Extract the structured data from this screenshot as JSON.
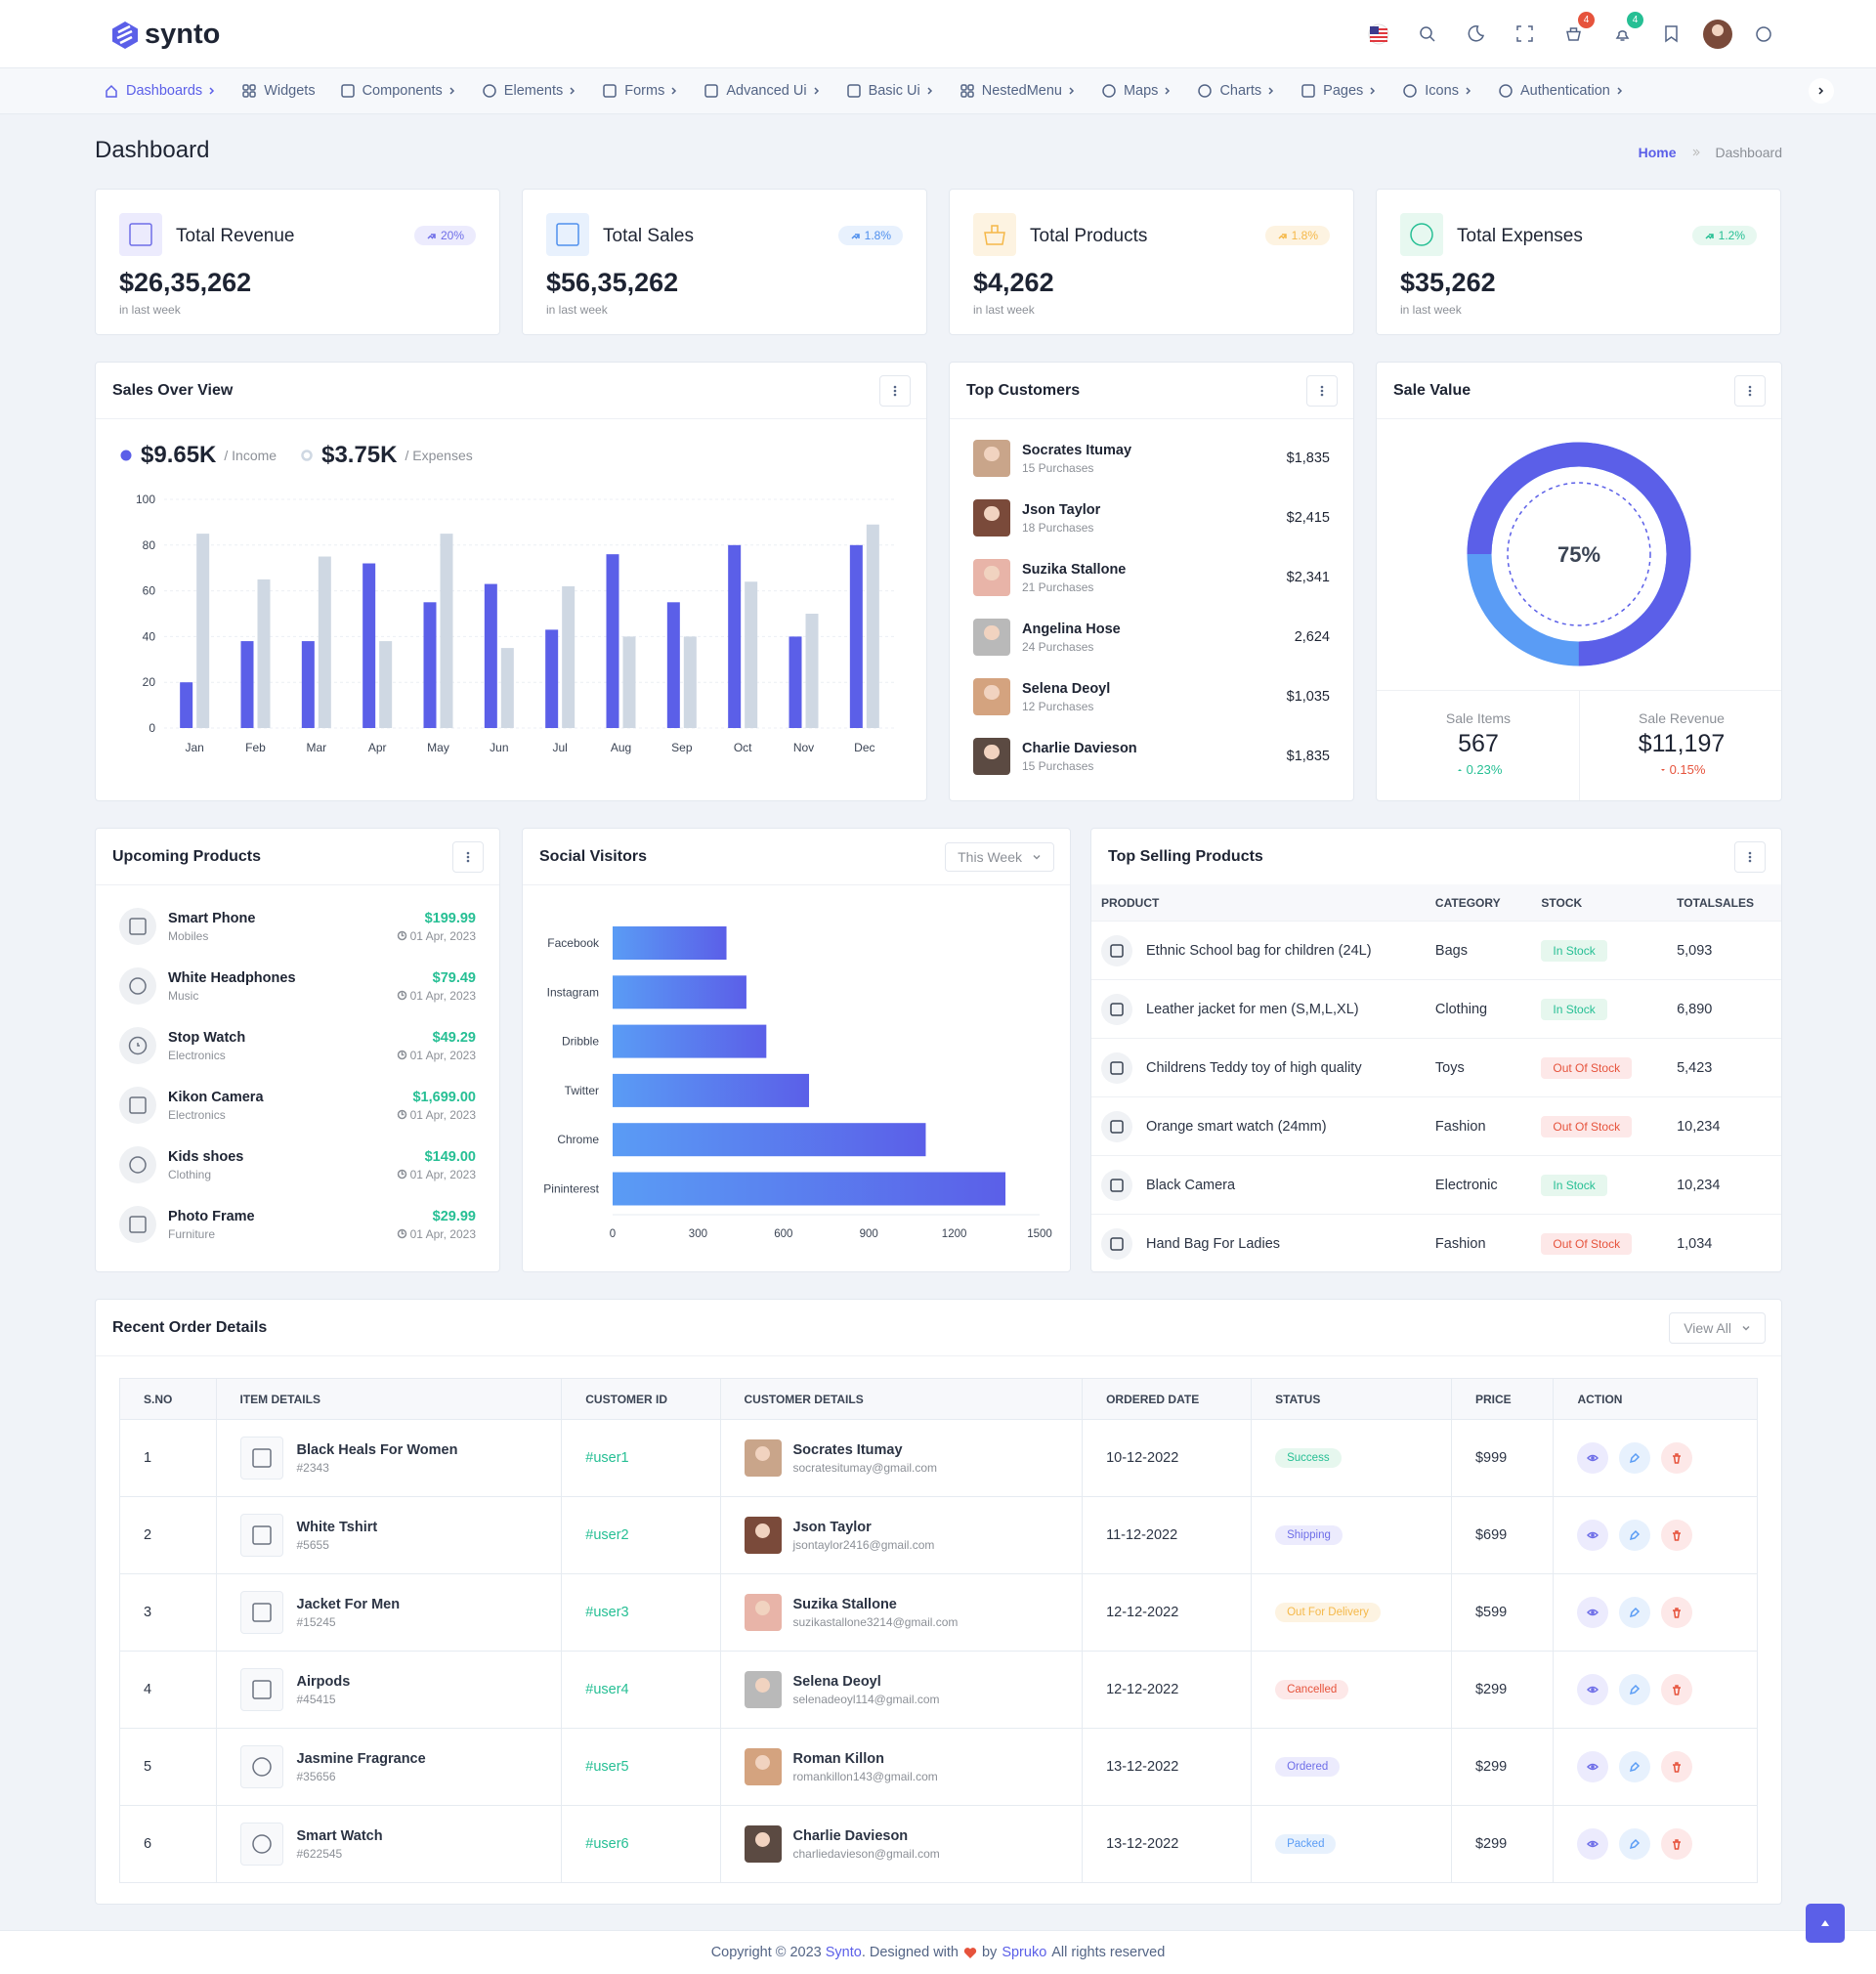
{
  "header": {
    "logo": "synto",
    "cart_badge": "4",
    "notification_badge": "4"
  },
  "nav": [
    "Dashboards",
    "Widgets",
    "Components",
    "Elements",
    "Forms",
    "Advanced Ui",
    "Basic Ui",
    "NestedMenu",
    "Maps",
    "Charts",
    "Pages",
    "Icons",
    "Authentication"
  ],
  "page": {
    "title": "Dashboard",
    "breadcrumb": [
      "Home",
      "Dashboard"
    ]
  },
  "stats": [
    {
      "title": "Total Revenue",
      "change": "20%",
      "value": "$26,35,262",
      "note": "in last week",
      "color": "#6e6ee8",
      "bg": "#ecebfd"
    },
    {
      "title": "Total Sales",
      "change": "1.8%",
      "value": "$56,35,262",
      "note": "in last week",
      "color": "#4f8fed",
      "bg": "#e8f1fd"
    },
    {
      "title": "Total Products",
      "change": "1.8%",
      "value": "$4,262",
      "note": "in last week",
      "color": "#f5b849",
      "bg": "#fdf3e1"
    },
    {
      "title": "Total Expenses",
      "change": "1.2%",
      "value": "$35,262",
      "note": "in last week",
      "color": "#26bf94",
      "bg": "#e7f8f0"
    }
  ],
  "sales_overview": {
    "title": "Sales Over View",
    "chart": {
      "type": "bar",
      "categories": [
        "Jan",
        "Feb",
        "Mar",
        "Apr",
        "May",
        "Jun",
        "Jul",
        "Aug",
        "Sep",
        "Oct",
        "Nov",
        "Dec"
      ],
      "series": [
        {
          "name": "/ Income",
          "total": "$9.65K",
          "color": "#5b5fe8",
          "values": [
            20,
            38,
            38,
            72,
            55,
            63,
            43,
            76,
            55,
            80,
            40,
            80
          ]
        },
        {
          "name": "/ Expenses",
          "total": "$3.75K",
          "color": "#cfd8e3",
          "values": [
            85,
            65,
            75,
            38,
            85,
            35,
            62,
            40,
            40,
            64,
            50,
            89
          ]
        }
      ],
      "ylim": [
        0,
        100
      ],
      "yticks": [
        0,
        20,
        40,
        60,
        80,
        100
      ],
      "grid": true
    }
  },
  "top_customers": {
    "title": "Top Customers",
    "items": [
      {
        "name": "Socrates Itumay",
        "purchases": "15 Purchases",
        "amount": "$1,835"
      },
      {
        "name": "Json Taylor",
        "purchases": "18 Purchases",
        "amount": "$2,415"
      },
      {
        "name": "Suzika Stallone",
        "purchases": "21 Purchases",
        "amount": "$2,341"
      },
      {
        "name": "Angelina Hose",
        "purchases": "24 Purchases",
        "amount": "2,624"
      },
      {
        "name": "Selena Deoyl",
        "purchases": "12 Purchases",
        "amount": "$1,035"
      },
      {
        "name": "Charlie Davieson",
        "purchases": "15 Purchases",
        "amount": "$1,835"
      }
    ]
  },
  "sale_value": {
    "title": "Sale Value",
    "chart": {
      "type": "donut",
      "values": [
        75
      ],
      "value_labels": [
        "75%"
      ],
      "ylim": [
        0,
        100
      ],
      "color": "#5b5fe8",
      "rest_color": "#5a9cf5"
    },
    "stats": [
      {
        "label": "Sale Items",
        "value": "567",
        "change": "0.23%",
        "trend": "up"
      },
      {
        "label": "Sale Revenue",
        "value": "$11,197",
        "change": "0.15%",
        "trend": "down"
      }
    ]
  },
  "upcoming_products": {
    "title": "Upcoming Products",
    "items": [
      {
        "name": "Smart Phone",
        "category": "Mobiles",
        "price": "$199.99",
        "date": "01 Apr, 2023"
      },
      {
        "name": "White Headphones",
        "category": "Music",
        "price": "$79.49",
        "date": "01 Apr, 2023"
      },
      {
        "name": "Stop Watch",
        "category": "Electronics",
        "price": "$49.29",
        "date": "01 Apr, 2023"
      },
      {
        "name": "Kikon Camera",
        "category": "Electronics",
        "price": "$1,699.00",
        "date": "01 Apr, 2023"
      },
      {
        "name": "Kids shoes",
        "category": "Clothing",
        "price": "$149.00",
        "date": "01 Apr, 2023"
      },
      {
        "name": "Photo Frame",
        "category": "Furniture",
        "price": "$29.99",
        "date": "01 Apr, 2023"
      }
    ]
  },
  "social_visitors": {
    "title": "Social Visitors",
    "filter": "This Week",
    "chart": {
      "type": "hbar",
      "categories": [
        "Facebook",
        "Instagram",
        "Dribble",
        "Twitter",
        "Chrome",
        "Pininterest"
      ],
      "values": [
        400,
        470,
        540,
        690,
        1100,
        1380
      ],
      "xlim": [
        0,
        1500
      ],
      "xticks": [
        0,
        300,
        600,
        900,
        1200,
        1500
      ],
      "colors": [
        "#5a9cf5",
        "#5b5fe8"
      ]
    }
  },
  "top_selling": {
    "title": "Top Selling Products",
    "columns": [
      "PRODUCT",
      "CATEGORY",
      "STOCK",
      "TOTALSALES"
    ],
    "rows": [
      {
        "product": "Ethnic School bag for children (24L)",
        "category": "Bags",
        "stock": "In Stock",
        "stock_color": "green",
        "total": "5,093"
      },
      {
        "product": "Leather jacket for men (S,M,L,XL)",
        "category": "Clothing",
        "stock": "In Stock",
        "stock_color": "green",
        "total": "6,890"
      },
      {
        "product": "Childrens Teddy toy of high quality",
        "category": "Toys",
        "stock": "Out Of Stock",
        "stock_color": "red",
        "total": "5,423"
      },
      {
        "product": "Orange smart watch (24mm)",
        "category": "Fashion",
        "stock": "Out Of Stock",
        "stock_color": "red",
        "total": "10,234"
      },
      {
        "product": "Black Camera",
        "category": "Electronic",
        "stock": "In Stock",
        "stock_color": "green",
        "total": "10,234"
      },
      {
        "product": "Hand Bag For Ladies",
        "category": "Fashion",
        "stock": "Out Of Stock",
        "stock_color": "red",
        "total": "1,034"
      }
    ]
  },
  "recent_orders": {
    "title": "Recent Order Details",
    "button": "View All",
    "columns": [
      "S.NO",
      "ITEM DETAILS",
      "CUSTOMER ID",
      "CUSTOMER DETAILS",
      "ORDERED DATE",
      "STATUS",
      "PRICE",
      "ACTION"
    ],
    "rows": [
      {
        "no": 1,
        "item": "Black Heals For Women",
        "item_id": "#2343",
        "customer_id": "#user1",
        "customer": "Socrates Itumay",
        "email": "socratesitumay@gmail.com",
        "date": "10-12-2022",
        "status": "Success",
        "status_color": "green",
        "price": "$999"
      },
      {
        "no": 2,
        "item": "White Tshirt",
        "item_id": "#5655",
        "customer_id": "#user2",
        "customer": "Json Taylor",
        "email": "jsontaylor2416@gmail.com",
        "date": "11-12-2022",
        "status": "Shipping",
        "status_color": "purple",
        "price": "$699"
      },
      {
        "no": 3,
        "item": "Jacket For Men",
        "item_id": "#15245",
        "customer_id": "#user3",
        "customer": "Suzika Stallone",
        "email": "suzikastallone3214@gmail.com",
        "date": "12-12-2022",
        "status": "Out For Delivery",
        "status_color": "yellow",
        "price": "$599"
      },
      {
        "no": 4,
        "item": "Airpods",
        "item_id": "#45415",
        "customer_id": "#user4",
        "customer": "Selena Deoyl",
        "email": "selenadeoyl114@gmail.com",
        "date": "12-12-2022",
        "status": "Cancelled",
        "status_color": "red",
        "price": "$299"
      },
      {
        "no": 5,
        "item": "Jasmine Fragrance",
        "item_id": "#35656",
        "customer_id": "#user5",
        "customer": "Roman Killon",
        "email": "romankillon143@gmail.com",
        "date": "13-12-2022",
        "status": "Ordered",
        "status_color": "purple",
        "price": "$299"
      },
      {
        "no": 6,
        "item": "Smart Watch",
        "item_id": "#622545",
        "customer_id": "#user6",
        "customer": "Charlie Davieson",
        "email": "charliedavieson@gmail.com",
        "date": "13-12-2022",
        "status": "Packed",
        "status_color": "blue",
        "price": "$299"
      }
    ]
  },
  "footer": {
    "copyright": "Copyright © 2023",
    "brand": "Synto",
    "designed": ". Designed with",
    "by": "by",
    "author": "Spruko",
    "rights": "All rights reserved"
  }
}
